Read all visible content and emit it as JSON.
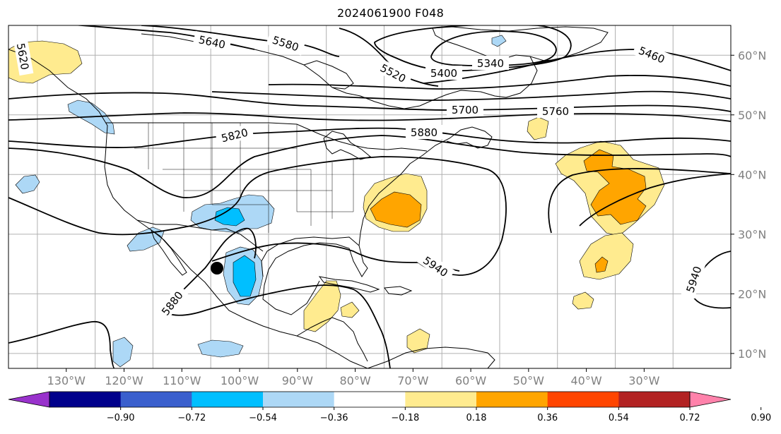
{
  "title": "2024061900 F048",
  "map": {
    "lon_range": [
      -140,
      -15
    ],
    "lat_range": [
      7.5,
      65
    ],
    "gridline_lons": [
      -135,
      -125,
      -115,
      -105,
      -95,
      -85,
      -75,
      -65,
      -55,
      -45,
      -35,
      -25
    ],
    "gridline_lats": [
      10,
      20,
      30,
      40,
      50,
      60
    ],
    "lon_ticks": [
      "130°W",
      "120°W",
      "110°W",
      "100°W",
      "90°W",
      "80°W",
      "70°W",
      "60°W",
      "50°W",
      "40°W",
      "30°W"
    ],
    "lat_ticks": [
      "60°N",
      "50°N",
      "40°N",
      "30°N",
      "20°N",
      "10°N"
    ],
    "contour_labels": [
      "5640",
      "5580",
      "5520",
      "5400",
      "5340",
      "5460",
      "5620",
      "5700",
      "5760",
      "5820",
      "5880",
      "5940",
      "5880",
      "5940"
    ],
    "marker": "storm-center-dot"
  },
  "colorbar": {
    "colors": [
      "#9932cc",
      "#00008b",
      "#3a5fcd",
      "#00bfff",
      "#add8f6",
      "#ffffff",
      "#ffeb8f",
      "#ffa500",
      "#ff4500",
      "#b22222",
      "#ff82ab"
    ],
    "tick_labels": [
      "−0.90",
      "−0.72",
      "−0.54",
      "−0.36",
      "−0.18",
      "0.18",
      "0.36",
      "0.54",
      "0.72",
      "0.90"
    ]
  }
}
